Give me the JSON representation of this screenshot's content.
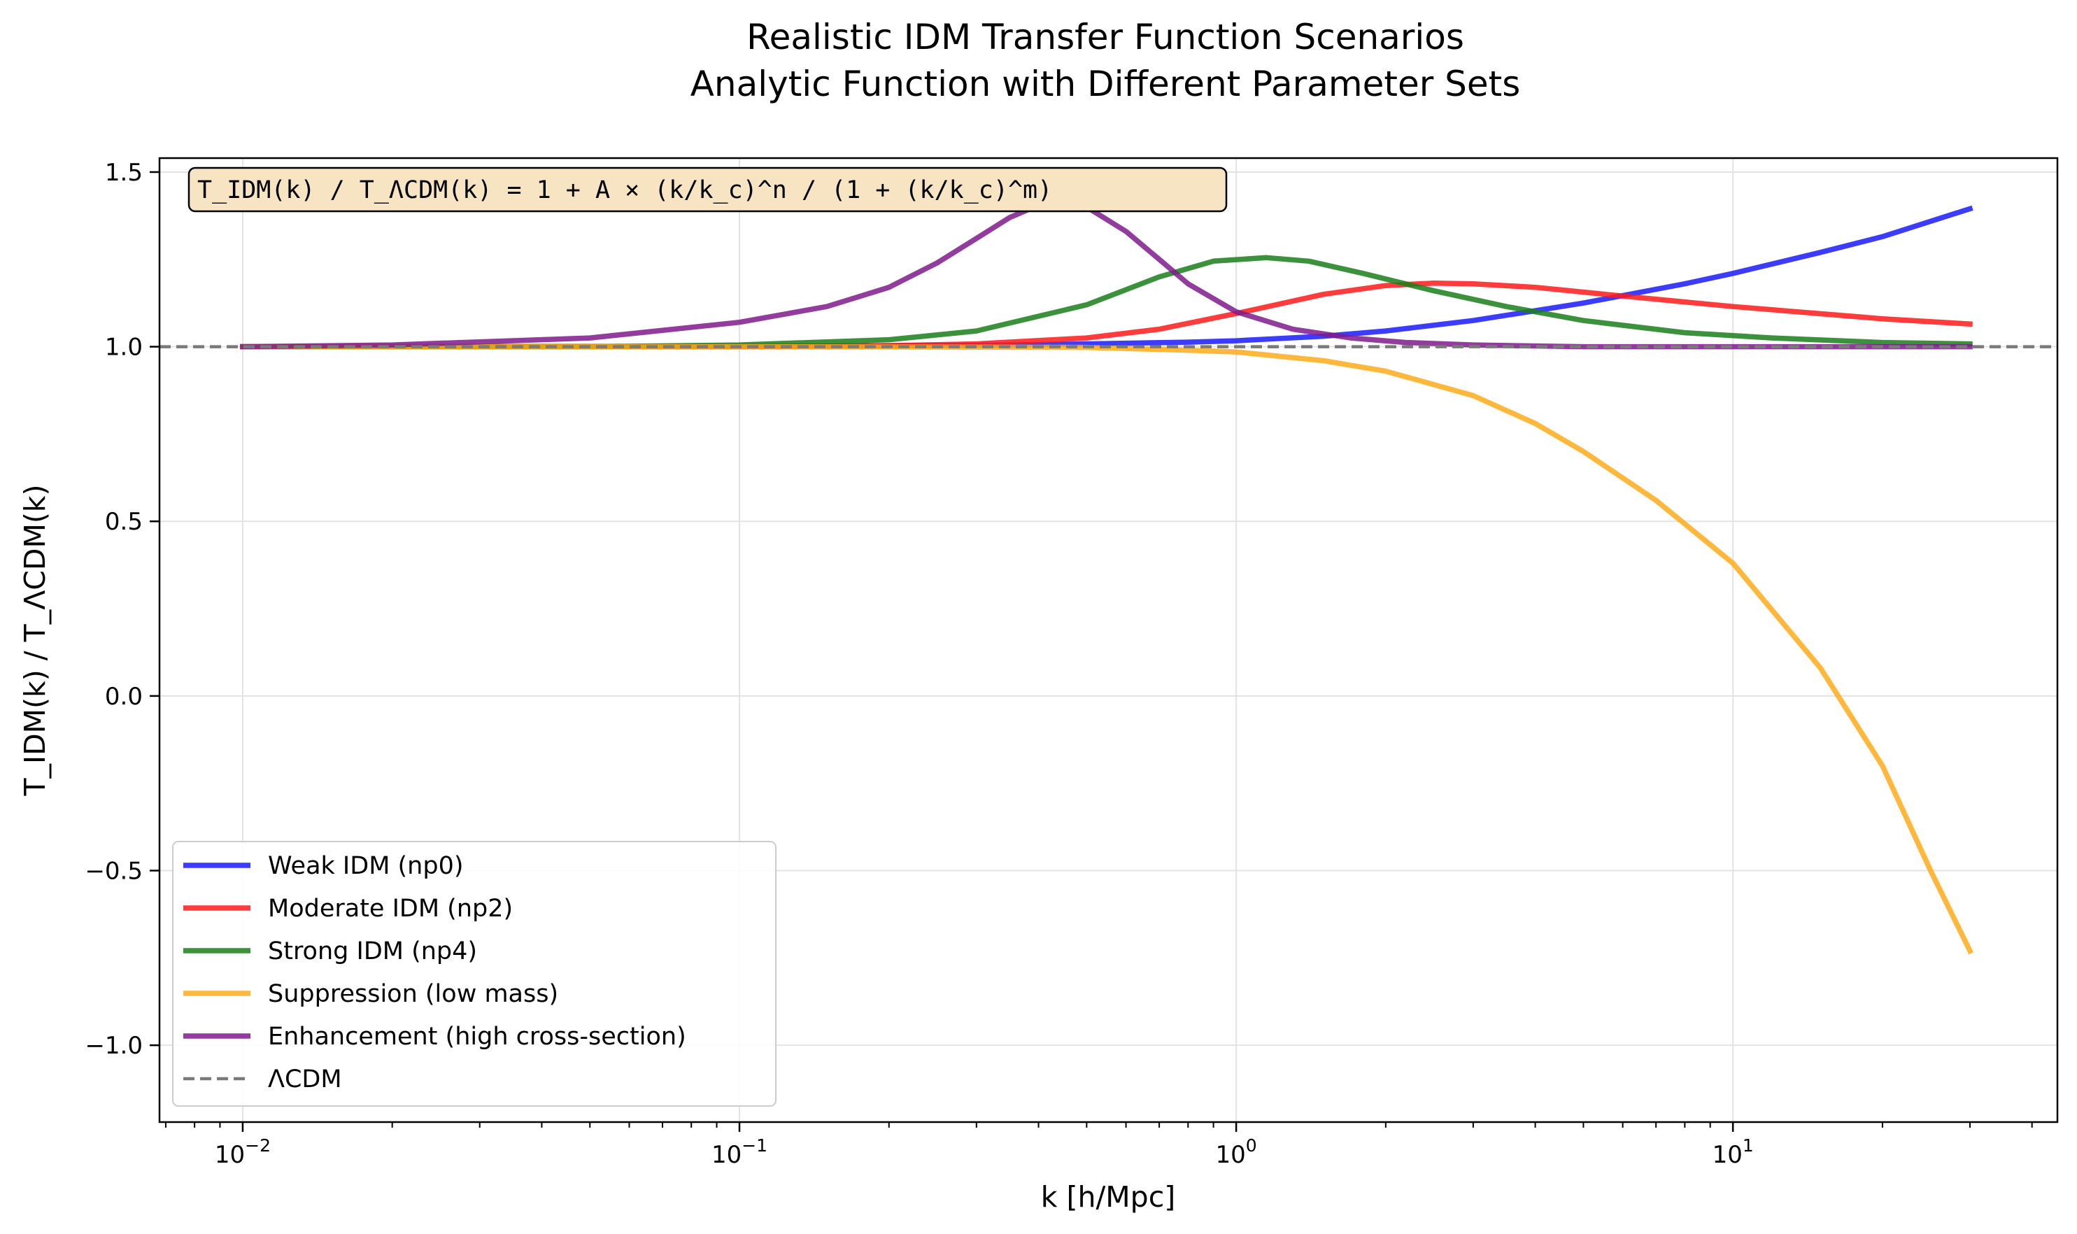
{
  "chart_data": {
    "type": "line",
    "title": "Realistic IDM Transfer Function Scenarios",
    "subtitle": "Analytic Function with Different Parameter Sets",
    "xlabel": "k [h/Mpc]",
    "ylabel": "T_IDM(k) / T_ΛCDM(k)",
    "xscale": "log",
    "xlim": [
      0.0068,
      45
    ],
    "ylim": [
      -1.22,
      1.54
    ],
    "grid": true,
    "legend_position": "lower-left",
    "annotation": "T_IDM(k) / T_ΛCDM(k) = 1 + A × (k/k_c)^n / (1 + (k/k_c)^m)",
    "x_ticks": [
      {
        "value": 0.01,
        "base": "10",
        "exp": "−2"
      },
      {
        "value": 0.1,
        "base": "10",
        "exp": "−1"
      },
      {
        "value": 1,
        "base": "10",
        "exp": "0"
      },
      {
        "value": 10,
        "base": "10",
        "exp": "1"
      }
    ],
    "y_ticks": [
      {
        "value": 1.5,
        "label": "1.5"
      },
      {
        "value": 1.0,
        "label": "1.0"
      },
      {
        "value": 0.5,
        "label": "0.5"
      },
      {
        "value": 0.0,
        "label": "0.0"
      },
      {
        "value": -0.5,
        "label": "−0.5"
      },
      {
        "value": -1.0,
        "label": "−1.0"
      }
    ],
    "series": [
      {
        "name": "Weak IDM (np0)",
        "color": "#1a1aff",
        "style": "solid",
        "x": [
          0.01,
          0.1,
          0.3,
          0.5,
          0.8,
          1,
          1.5,
          2,
          3,
          5,
          8,
          10,
          15,
          20,
          30
        ],
        "y": [
          1.0,
          1.001,
          1.004,
          1.008,
          1.013,
          1.017,
          1.03,
          1.045,
          1.075,
          1.125,
          1.18,
          1.21,
          1.27,
          1.315,
          1.395
        ]
      },
      {
        "name": "Moderate IDM (np2)",
        "color": "#ff1a1a",
        "style": "solid",
        "x": [
          0.01,
          0.1,
          0.2,
          0.3,
          0.5,
          0.7,
          1,
          1.5,
          2,
          2.5,
          3,
          4,
          6,
          10,
          20,
          30
        ],
        "y": [
          1.0,
          1.0,
          1.003,
          1.008,
          1.025,
          1.05,
          1.095,
          1.15,
          1.175,
          1.182,
          1.18,
          1.17,
          1.145,
          1.115,
          1.08,
          1.065
        ]
      },
      {
        "name": "Strong IDM (np4)",
        "color": "#1a7f1a",
        "style": "solid",
        "x": [
          0.01,
          0.05,
          0.1,
          0.2,
          0.3,
          0.5,
          0.7,
          0.9,
          1.15,
          1.4,
          1.8,
          2.5,
          3.5,
          5,
          8,
          12,
          20,
          30
        ],
        "y": [
          1.0,
          1.0,
          1.005,
          1.02,
          1.045,
          1.12,
          1.2,
          1.245,
          1.255,
          1.245,
          1.21,
          1.16,
          1.115,
          1.075,
          1.04,
          1.025,
          1.012,
          1.008
        ]
      },
      {
        "name": "Suppression (low mass)",
        "color": "#ffaa1a",
        "style": "solid",
        "x": [
          0.01,
          0.1,
          0.5,
          0.8,
          1,
          1.5,
          2,
          3,
          4,
          5,
          7,
          10,
          15,
          20,
          25,
          30
        ],
        "y": [
          1.0,
          1.0,
          0.998,
          0.99,
          0.985,
          0.96,
          0.93,
          0.86,
          0.78,
          0.7,
          0.56,
          0.38,
          0.08,
          -0.2,
          -0.5,
          -0.73
        ]
      },
      {
        "name": "Enhancement (high cross-section)",
        "color": "#7f1a8c",
        "style": "solid",
        "x": [
          0.01,
          0.02,
          0.05,
          0.1,
          0.15,
          0.2,
          0.25,
          0.3,
          0.35,
          0.4,
          0.45,
          0.5,
          0.6,
          0.7,
          0.8,
          1,
          1.3,
          1.7,
          2.2,
          3,
          5,
          10,
          30
        ],
        "y": [
          1.0,
          1.005,
          1.025,
          1.07,
          1.115,
          1.17,
          1.24,
          1.31,
          1.37,
          1.405,
          1.415,
          1.4,
          1.33,
          1.25,
          1.18,
          1.1,
          1.05,
          1.025,
          1.012,
          1.005,
          1.0,
          1.0,
          1.0
        ]
      },
      {
        "name": "ΛCDM",
        "color": "#7a7a7a",
        "style": "dashed",
        "x": [
          0.0068,
          45
        ],
        "y": [
          1.0,
          1.0
        ]
      }
    ]
  }
}
